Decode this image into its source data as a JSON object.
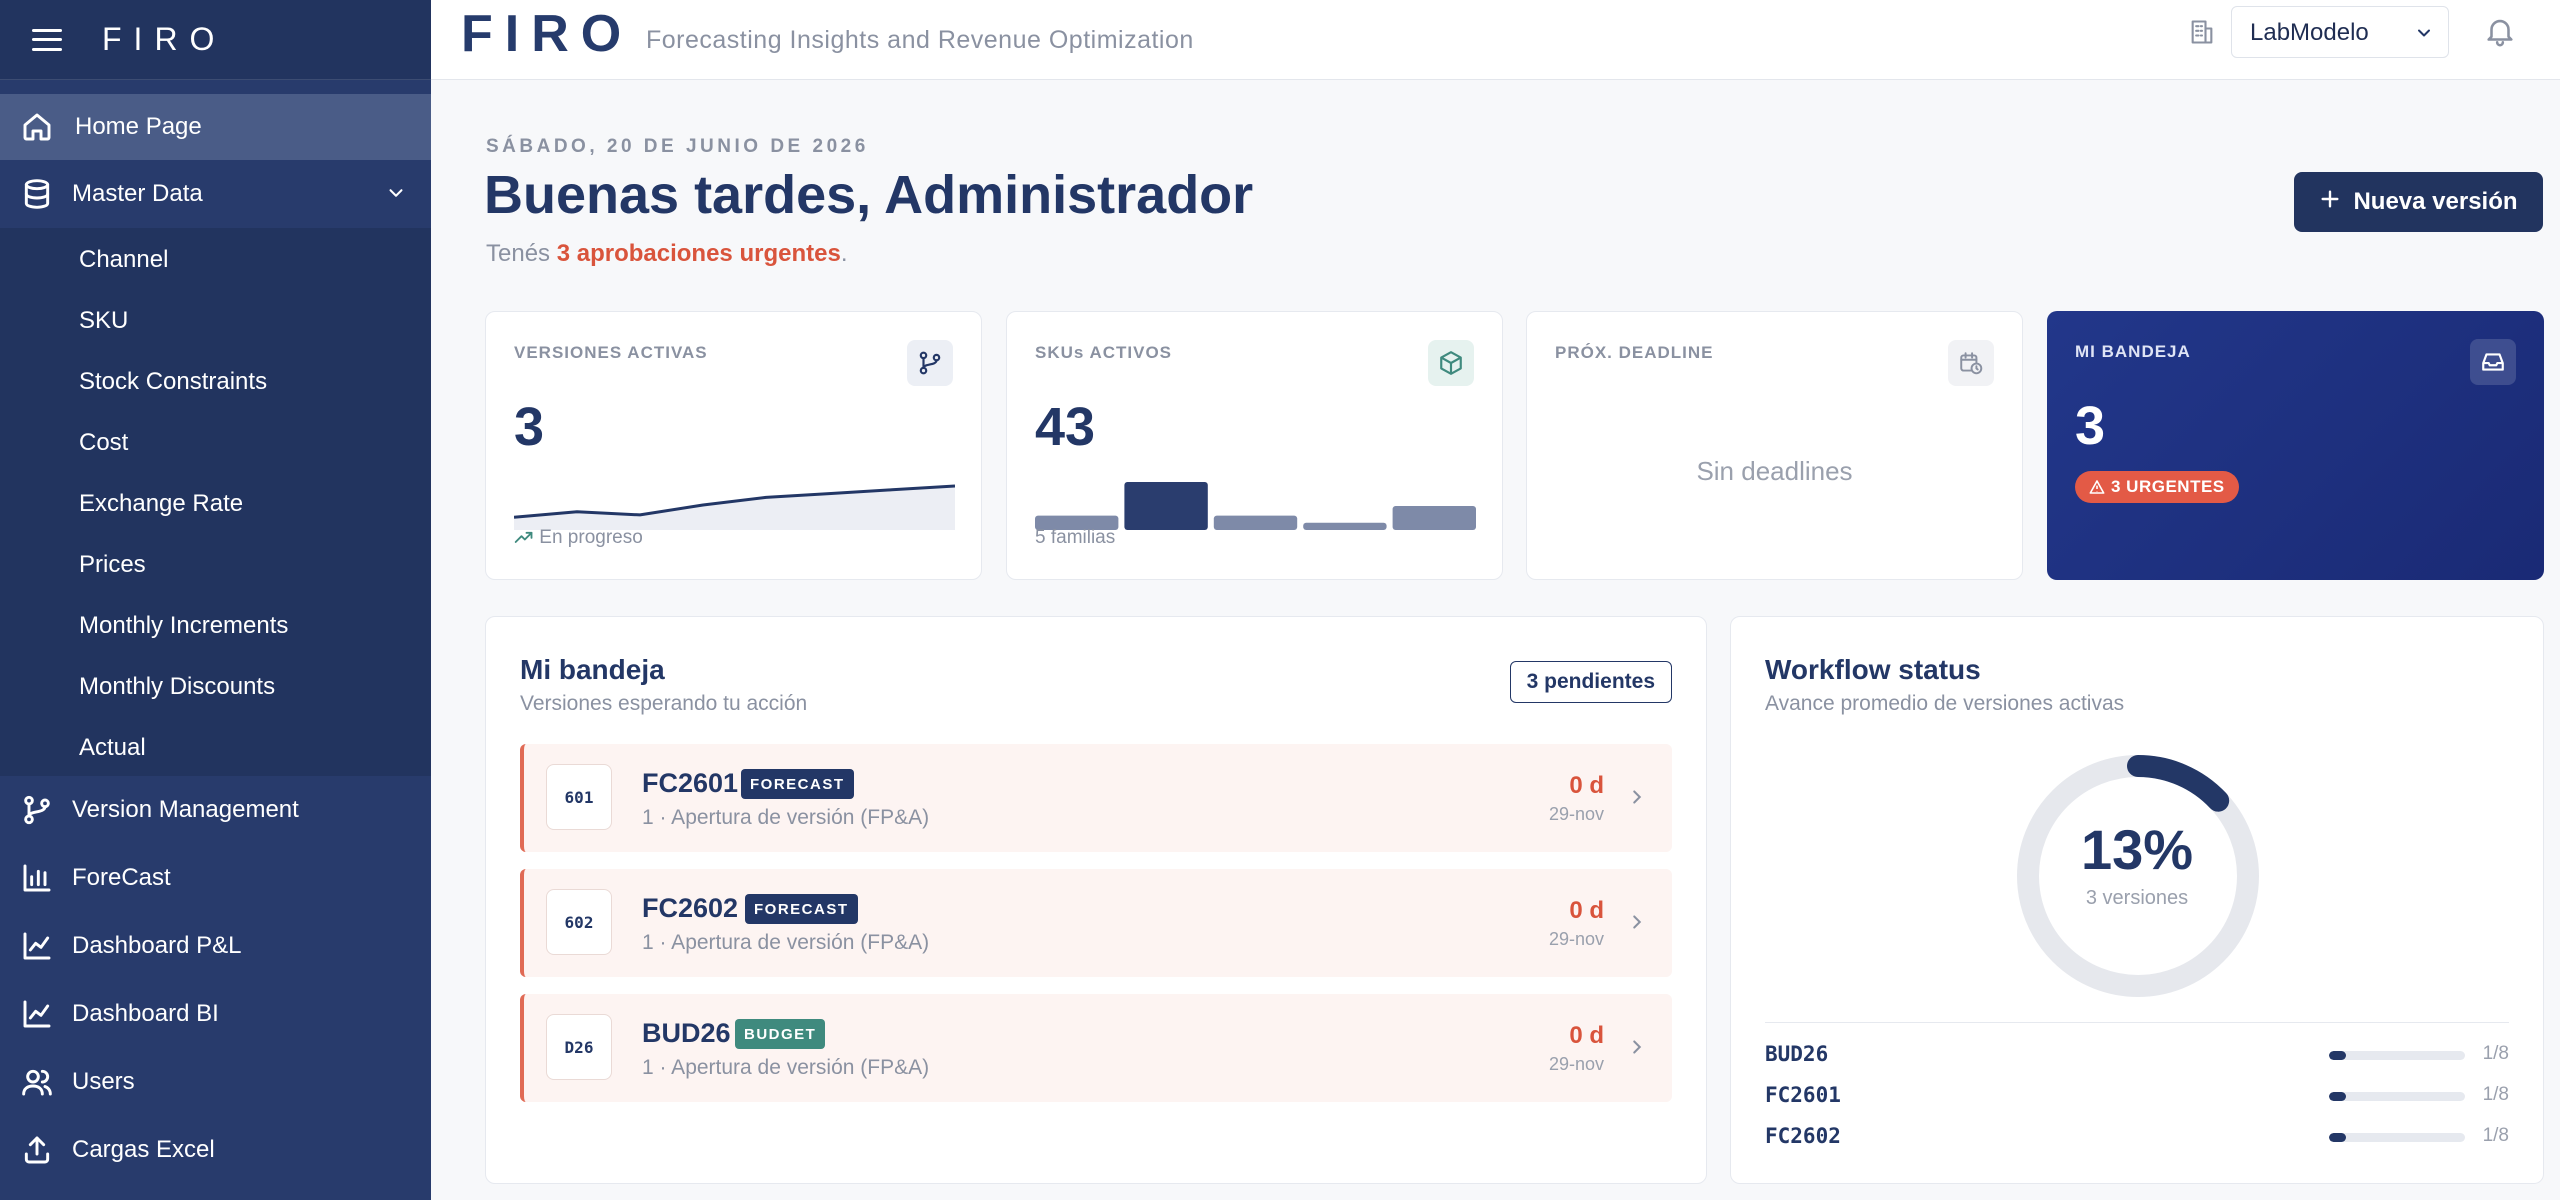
{
  "sidebar": {
    "logo": "FIRO",
    "items": {
      "home": "Home Page",
      "master": "Master Data",
      "version": "Version Management",
      "forecast": "ForeCast",
      "pnl": "Dashboard P&L",
      "bi": "Dashboard BI",
      "users": "Users",
      "excel": "Cargas Excel"
    },
    "submenu": [
      "Channel",
      "SKU",
      "Stock Constraints",
      "Cost",
      "Exchange Rate",
      "Prices",
      "Monthly Increments",
      "Monthly Discounts",
      "Actual"
    ]
  },
  "header": {
    "logo": "FIRO",
    "subtitle": "Forecasting Insights and Revenue Optimization",
    "tenant": "LabModelo"
  },
  "main": {
    "date": "SÁBADO, 20 DE JUNIO DE 2026",
    "greeting": "Buenas tardes, Administrador",
    "urgent_prefix": "Tenés ",
    "urgent_bold": "3 aprobaciones urgentes",
    "urgent_suffix": ".",
    "new_button": "Nueva versión"
  },
  "cards": {
    "versions": {
      "title": "VERSIONES ACTIVAS",
      "value": "3",
      "foot": "En progreso",
      "spark": [
        0.18,
        0.32,
        0.24,
        0.5,
        0.7,
        0.8,
        0.9,
        1.0
      ]
    },
    "skus": {
      "title": "SKUs ACTIVOS",
      "value": "43",
      "foot": "5 familias",
      "families": [
        0.3,
        1.0,
        0.3,
        0.15,
        0.5
      ]
    },
    "deadline": {
      "title": "PRÓX. DEADLINE",
      "empty": "Sin deadlines"
    },
    "inbox": {
      "title": "MI BANDEJA",
      "value": "3",
      "badge": "3 URGENTES"
    }
  },
  "inbox_panel": {
    "title": "Mi bandeja",
    "subtitle": "Versiones esperando tu acción",
    "pending": "3 pendientes",
    "rows": [
      {
        "code": "601",
        "name": "FC2601",
        "tag": "FORECAST",
        "step": "1 · Apertura de versión (FP&A)",
        "days": "0 d",
        "date": "29-nov"
      },
      {
        "code": "602",
        "name": "FC2602",
        "tag": "FORECAST",
        "step": "1 · Apertura de versión (FP&A)",
        "days": "0 d",
        "date": "29-nov"
      },
      {
        "code": "D26",
        "name": "BUD26",
        "tag": "BUDGET",
        "step": "1 · Apertura de versión (FP&A)",
        "days": "0 d",
        "date": "29-nov"
      }
    ]
  },
  "workflow": {
    "title": "Workflow status",
    "subtitle": "Avance promedio de versiones activas",
    "percent": "13%",
    "percent_value": 0.13,
    "versions": "3 versiones",
    "rows": [
      {
        "name": "BUD26",
        "frac": "1/8",
        "progress": 0.125
      },
      {
        "name": "FC2601",
        "frac": "1/8",
        "progress": 0.125
      },
      {
        "name": "FC2602",
        "frac": "1/8",
        "progress": 0.125
      }
    ]
  },
  "colors": {
    "navy": "#233766",
    "accent_red": "#d9543c",
    "budget_green": "#3f8a7e"
  }
}
